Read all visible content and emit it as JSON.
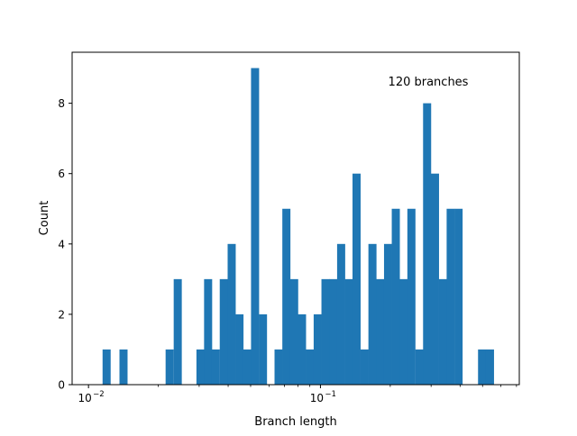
{
  "chart_data": {
    "type": "bar",
    "subtype": "histogram",
    "xscale": "log",
    "xlabel": "Branch length",
    "ylabel": "Count",
    "annotation": "120 branches",
    "xlim": [
      0.0085,
      0.72
    ],
    "ylim": [
      0,
      9.45
    ],
    "grid": false,
    "legend": "none",
    "color": "#1f77b4",
    "bin_width_log10": 0.0333,
    "bins": [
      {
        "left": 0.0115,
        "count": 1
      },
      {
        "left": 0.0136,
        "count": 1
      },
      {
        "left": 0.0215,
        "count": 1
      },
      {
        "left": 0.0233,
        "count": 3
      },
      {
        "left": 0.0292,
        "count": 1
      },
      {
        "left": 0.0315,
        "count": 3
      },
      {
        "left": 0.034,
        "count": 1
      },
      {
        "left": 0.0368,
        "count": 3
      },
      {
        "left": 0.0398,
        "count": 4
      },
      {
        "left": 0.043,
        "count": 2
      },
      {
        "left": 0.0464,
        "count": 1
      },
      {
        "left": 0.0502,
        "count": 9
      },
      {
        "left": 0.0543,
        "count": 2
      },
      {
        "left": 0.0634,
        "count": 1
      },
      {
        "left": 0.0685,
        "count": 5
      },
      {
        "left": 0.074,
        "count": 3
      },
      {
        "left": 0.08,
        "count": 2
      },
      {
        "left": 0.0865,
        "count": 1
      },
      {
        "left": 0.0935,
        "count": 2
      },
      {
        "left": 0.101,
        "count": 3
      },
      {
        "left": 0.109,
        "count": 3
      },
      {
        "left": 0.118,
        "count": 4
      },
      {
        "left": 0.1275,
        "count": 3
      },
      {
        "left": 0.1375,
        "count": 6
      },
      {
        "left": 0.149,
        "count": 1
      },
      {
        "left": 0.161,
        "count": 4
      },
      {
        "left": 0.174,
        "count": 3
      },
      {
        "left": 0.188,
        "count": 4
      },
      {
        "left": 0.203,
        "count": 5
      },
      {
        "left": 0.2195,
        "count": 3
      },
      {
        "left": 0.237,
        "count": 5
      },
      {
        "left": 0.2565,
        "count": 1
      },
      {
        "left": 0.277,
        "count": 8
      },
      {
        "left": 0.2995,
        "count": 6
      },
      {
        "left": 0.324,
        "count": 3
      },
      {
        "left": 0.35,
        "count": 5
      },
      {
        "left": 0.3785,
        "count": 5
      },
      {
        "left": 0.478,
        "count": 1
      },
      {
        "left": 0.517,
        "count": 1
      }
    ],
    "yticks": [
      0,
      2,
      4,
      6,
      8
    ],
    "ytick_labels": [
      "0",
      "2",
      "4",
      "6",
      "8"
    ],
    "xticks_major": [
      0.01,
      0.1
    ],
    "xtick_major_labels": [
      "10",
      "10"
    ],
    "xtick_major_exponents": [
      "−2",
      "−1"
    ],
    "xticks_minor": [
      0.02,
      0.03,
      0.04,
      0.05,
      0.06,
      0.07,
      0.08,
      0.09,
      0.2,
      0.3,
      0.4,
      0.5,
      0.6,
      0.7
    ]
  }
}
